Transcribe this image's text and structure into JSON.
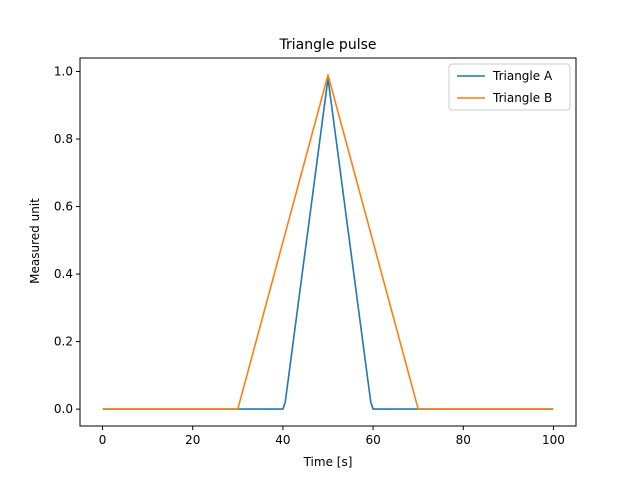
{
  "chart_data": {
    "type": "line",
    "title": "Triangle pulse",
    "xlabel": "Time [s]",
    "ylabel": "Measured unit",
    "xlim": [
      -5,
      105
    ],
    "ylim": [
      -0.05,
      1.04
    ],
    "xticks": [
      0,
      20,
      40,
      60,
      80,
      100
    ],
    "xtick_labels": [
      "0",
      "20",
      "40",
      "60",
      "80",
      "100"
    ],
    "yticks": [
      0.0,
      0.2,
      0.4,
      0.6,
      0.8,
      1.0
    ],
    "ytick_labels": [
      "0.0",
      "0.2",
      "0.4",
      "0.6",
      "0.8",
      "1.0"
    ],
    "grid": false,
    "legend_position": "top-right",
    "series": [
      {
        "name": "Triangle A",
        "color": "#1f77b4",
        "x": [
          0,
          40,
          40.5,
          50,
          59.5,
          60,
          100
        ],
        "y": [
          0,
          0,
          0.02,
          0.98,
          0.02,
          0,
          0
        ]
      },
      {
        "name": "Triangle B",
        "color": "#ff7f0e",
        "x": [
          0,
          30,
          50,
          70,
          100
        ],
        "y": [
          0,
          0,
          0.99,
          0,
          0
        ]
      }
    ]
  }
}
